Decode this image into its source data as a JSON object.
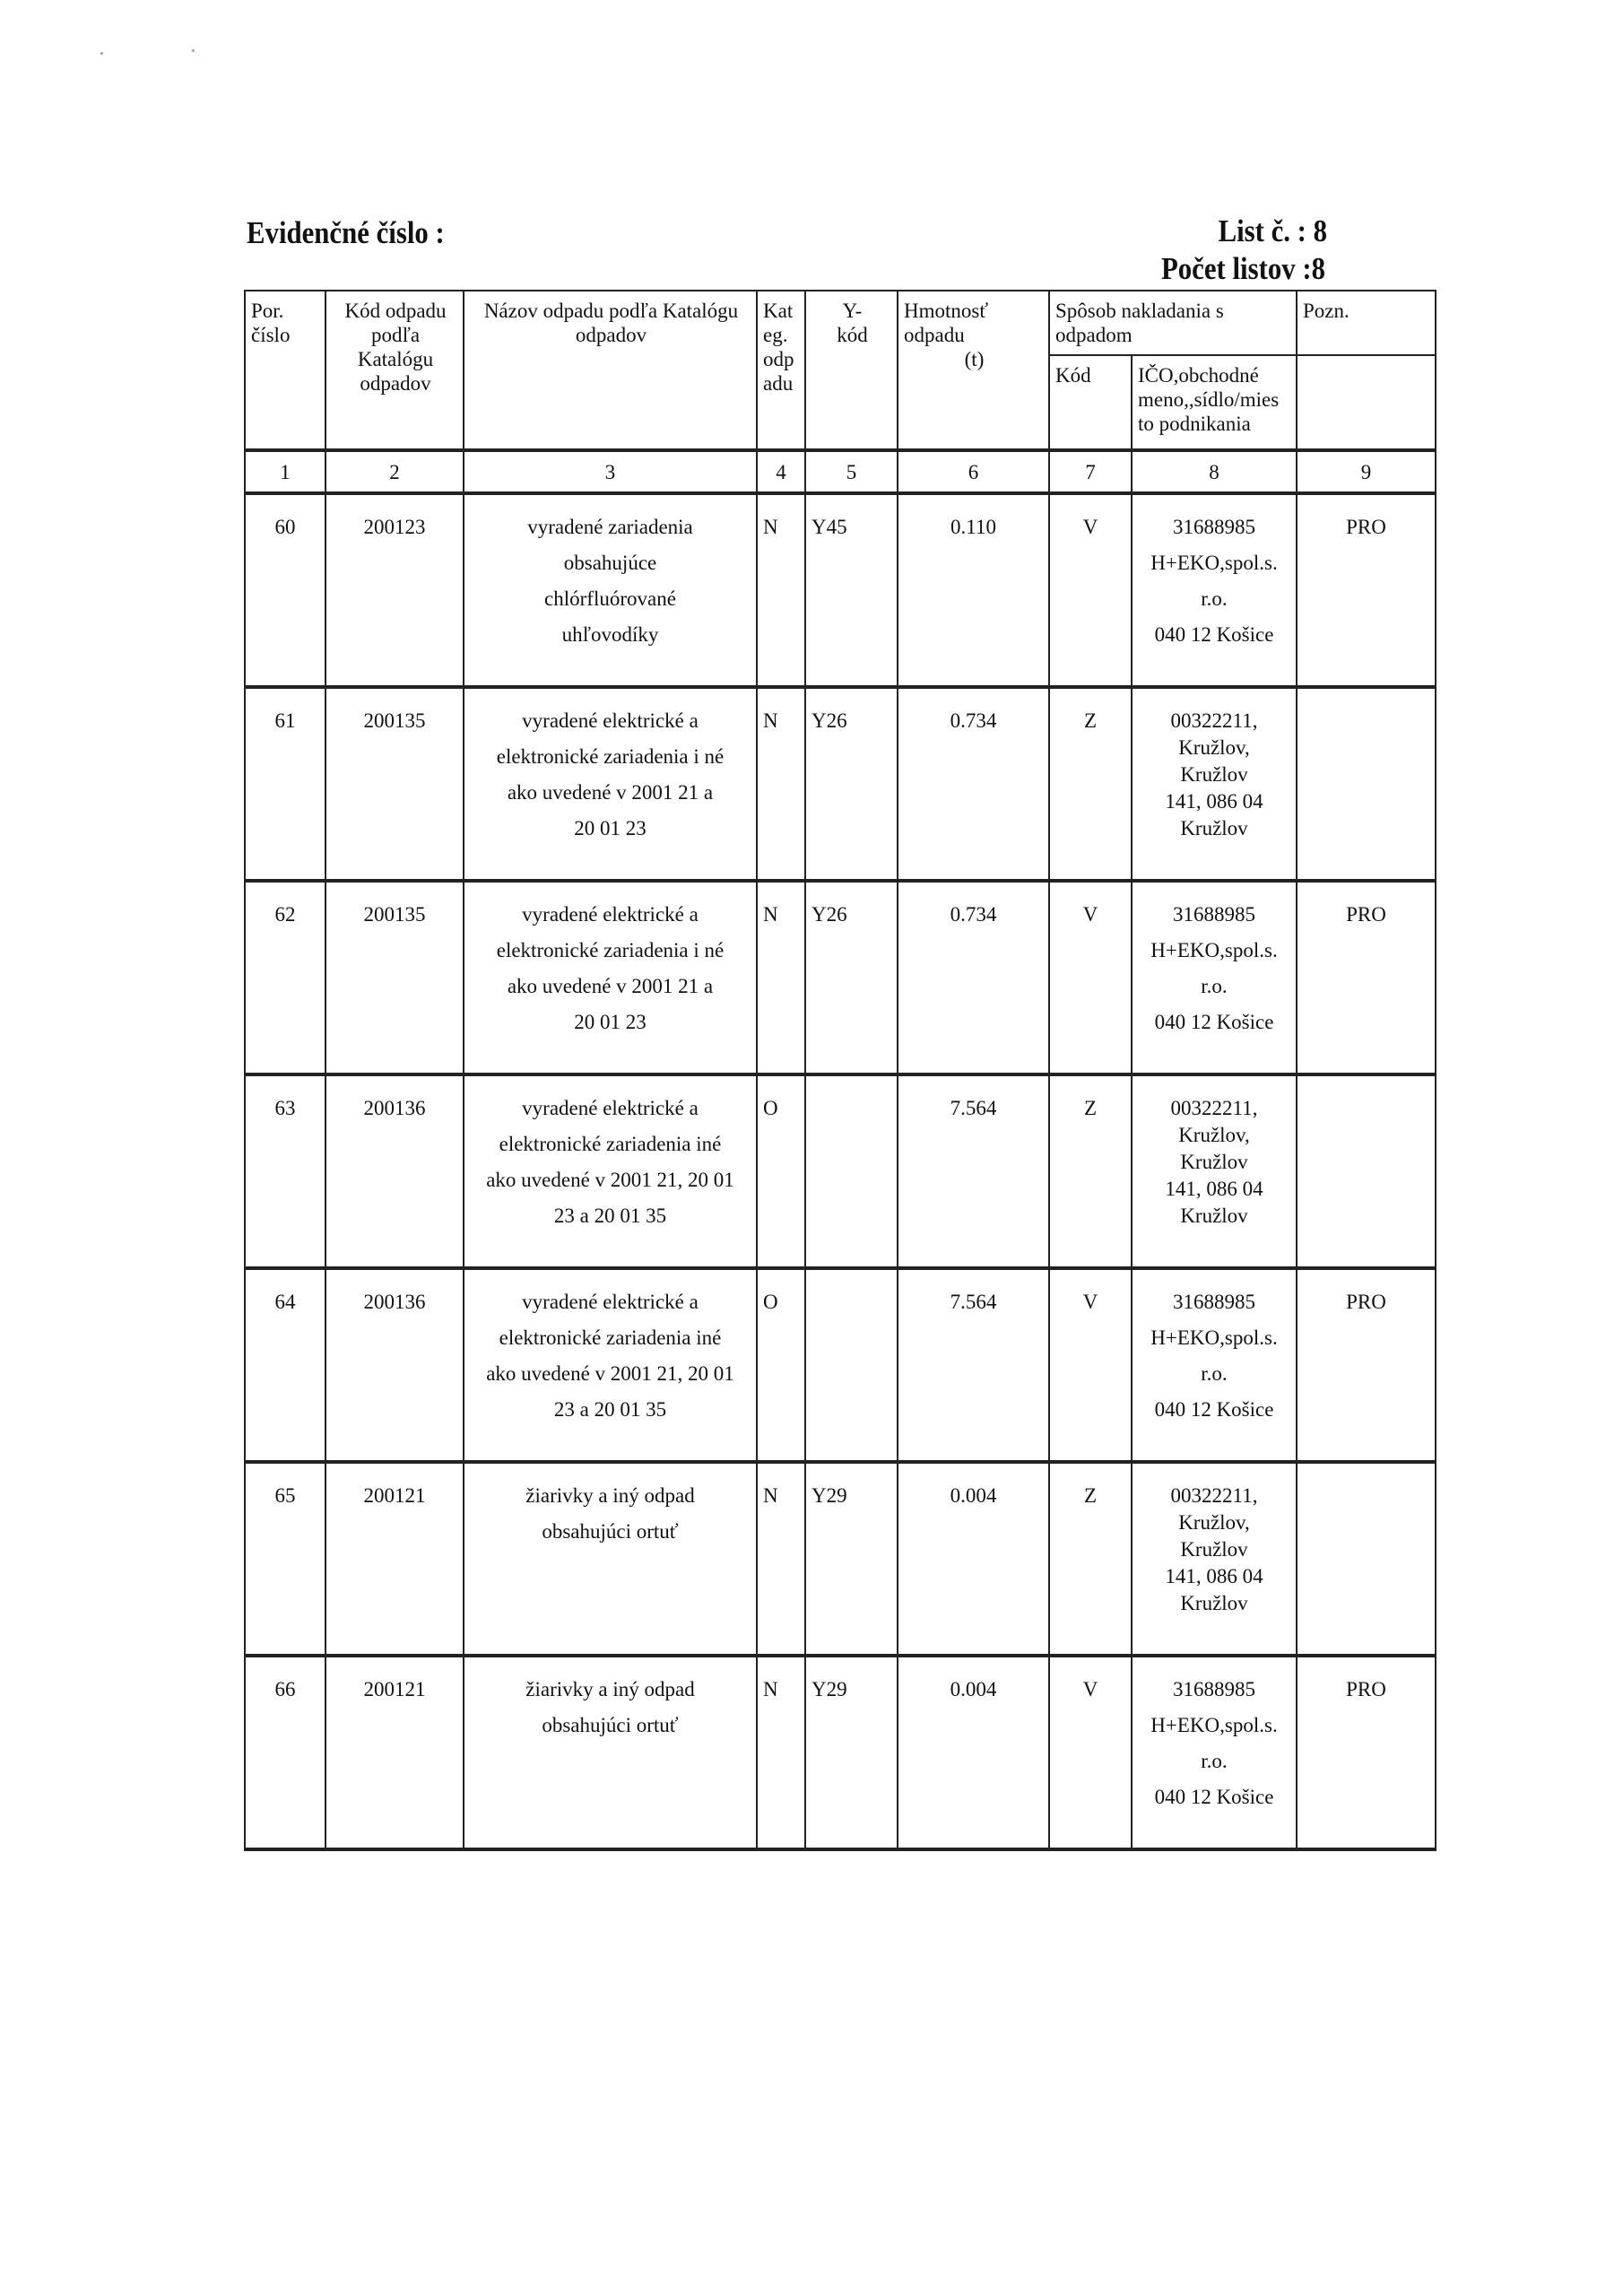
{
  "header": {
    "title": "Evidenčné číslo :",
    "list": "List č. : 8",
    "pocet": "Počet listov :8"
  },
  "columns": {
    "por": [
      "Por.",
      "číslo"
    ],
    "kod": [
      "Kód odpadu",
      "podľa",
      "Katalógu",
      "odpadov"
    ],
    "nazov": [
      "Názov odpadu podľa  Katalógu",
      "odpadov"
    ],
    "kat": [
      "Kat",
      "eg.",
      "odp",
      "adu"
    ],
    "ykod": [
      "Y-",
      "kód"
    ],
    "hmot": [
      "Hmotnosť",
      "odpadu",
      "(t)"
    ],
    "sposob": [
      "Spôsob nakladania s",
      "odpadom"
    ],
    "pozn": [
      "Pozn."
    ],
    "sub_kod": [
      "Kód"
    ],
    "sub_ico": [
      "IČO,obchodné",
      "meno,,sídlo/mies",
      "to podnikania"
    ]
  },
  "column_numbers": [
    "1",
    "2",
    "3",
    "4",
    "5",
    "6",
    "7",
    "8",
    "9"
  ],
  "rows": [
    {
      "por": "60",
      "kod": "200123",
      "nazov": [
        "vyradené zariadenia",
        "obsahujúce",
        "chlórfluórované",
        "uhľovodíky"
      ],
      "kat": "N",
      "y": "Y45",
      "hmot": "0.110",
      "sposob": "V",
      "ico": [
        "31688985",
        "H+EKO,spol.s.",
        "r.o.",
        "040 12 Košice"
      ],
      "pozn": "PRO"
    },
    {
      "por": "61",
      "kod": "200135",
      "nazov": [
        "vyradené elektrické a",
        "elektronické zariadenia i né",
        "ako uvedené v 2001 21 a",
        "20 01 23"
      ],
      "kat": "N",
      "y": "Y26",
      "hmot": "0.734",
      "sposob": "Z",
      "ico": [
        "00322211,",
        "Kružlov,",
        "Kružlov",
        "141, 086 04",
        "Kružlov"
      ],
      "pozn": ""
    },
    {
      "por": "62",
      "kod": "200135",
      "nazov": [
        "vyradené elektrické a",
        "elektronické zariadenia i né",
        "ako uvedené v 2001 21 a",
        "20 01 23"
      ],
      "kat": "N",
      "y": "Y26",
      "hmot": "0.734",
      "sposob": "V",
      "ico": [
        "31688985",
        "H+EKO,spol.s.",
        "r.o.",
        "040 12 Košice"
      ],
      "pozn": "PRO"
    },
    {
      "por": "63",
      "kod": "200136",
      "nazov": [
        "vyradené elektrické a",
        "elektronické zariadenia iné",
        "ako uvedené v 2001 21, 20 01",
        "23 a 20 01 35"
      ],
      "kat": "O",
      "y": "",
      "hmot": "7.564",
      "sposob": "Z",
      "ico": [
        "00322211,",
        "Kružlov,",
        "Kružlov",
        "141, 086 04",
        "Kružlov"
      ],
      "pozn": ""
    },
    {
      "por": "64",
      "kod": "200136",
      "nazov": [
        "vyradené elektrické a",
        "elektronické zariadenia iné",
        "ako uvedené v 2001 21, 20 01",
        "23 a 20 01 35"
      ],
      "kat": "O",
      "y": "",
      "hmot": "7.564",
      "sposob": "V",
      "ico": [
        "31688985",
        "H+EKO,spol.s.",
        "r.o.",
        "040 12 Košice"
      ],
      "pozn": "PRO"
    },
    {
      "por": "65",
      "kod": "200121",
      "nazov": [
        "žiarivky a iný odpad",
        "obsahujúci ortuť"
      ],
      "kat": "N",
      "y": "Y29",
      "hmot": "0.004",
      "sposob": "Z",
      "ico": [
        "00322211,",
        "Kružlov,",
        "Kružlov",
        "141, 086 04",
        "Kružlov"
      ],
      "pozn": ""
    },
    {
      "por": "66",
      "kod": "200121",
      "nazov": [
        "žiarivky a iný odpad",
        "obsahujúci ortuť"
      ],
      "kat": "N",
      "y": "Y29",
      "hmot": "0.004",
      "sposob": "V",
      "ico": [
        "31688985",
        "H+EKO,spol.s.",
        "r.o.",
        "040 12 Košice"
      ],
      "pozn": "PRO"
    }
  ]
}
